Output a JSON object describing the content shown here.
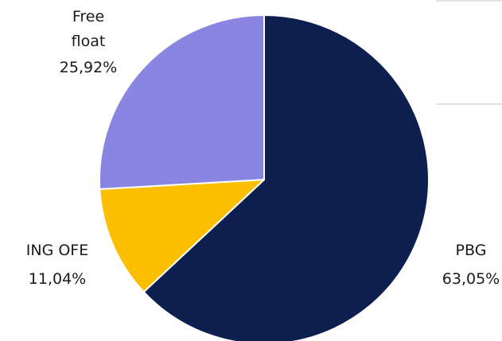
{
  "chart_data": {
    "type": "pie",
    "start_angle_deg": 0,
    "direction": "clockwise",
    "slices": [
      {
        "label_lines": [
          "PBG",
          "63,05%"
        ],
        "category": "PBG",
        "value": 63.05,
        "value_label": "63,05%",
        "color": "#0c1f4f"
      },
      {
        "label_lines": [
          "ING OFE",
          "11,04%"
        ],
        "category": "ING OFE",
        "value": 11.04,
        "value_label": "11,04%",
        "color": "#fbbf00"
      },
      {
        "label_lines": [
          "Free",
          "float",
          "25,92%"
        ],
        "category": "Free float",
        "value": 25.92,
        "value_label": "25,92%",
        "color": "#8886e0"
      }
    ],
    "slice_border_color": "#ffffff"
  }
}
